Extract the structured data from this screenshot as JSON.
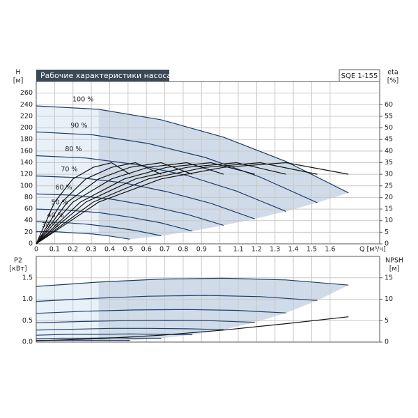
{
  "chart_data": [
    {
      "type": "line",
      "title": "Рабочие характеристики насоса",
      "subtitle": "SQE 1-155",
      "xlabel": "Q [м³/ч]",
      "ylabel": "H",
      "yunit": "[м]",
      "y2label": "eta",
      "y2unit": "[%]",
      "xlim": [
        0,
        1.87
      ],
      "xticks": [
        0,
        0.1,
        0.2,
        0.3,
        0.4,
        0.5,
        0.6,
        0.7,
        0.8,
        0.9,
        1,
        1.1,
        1.2,
        1.3,
        1.4,
        1.5,
        1.6
      ],
      "ylim": [
        0,
        280
      ],
      "yticks": [
        0,
        20,
        40,
        60,
        80,
        100,
        120,
        140,
        160,
        180,
        200,
        220,
        240,
        260
      ],
      "y2lim": [
        0,
        70
      ],
      "y2ticks": [
        0,
        5,
        10,
        15,
        20,
        25,
        30,
        35,
        40,
        45,
        50,
        55,
        60
      ],
      "grid": true,
      "series": [
        {
          "name": "100 %",
          "color": "#1f3d66",
          "x": [
            0,
            0.34,
            0.68,
            1.02,
            1.36,
            1.7
          ],
          "values": [
            238,
            232,
            214,
            184,
            142,
            88
          ]
        },
        {
          "name": "90 %",
          "color": "#1f3d66",
          "x": [
            0,
            0.31,
            0.61,
            0.92,
            1.22,
            1.53
          ],
          "values": [
            193,
            188,
            173,
            149,
            115,
            71
          ]
        },
        {
          "name": "80 %",
          "color": "#1f3d66",
          "x": [
            0,
            0.27,
            0.54,
            0.82,
            1.09,
            1.36
          ],
          "values": [
            152,
            148,
            137,
            118,
            91,
            56
          ]
        },
        {
          "name": "70 %",
          "color": "#1f3d66",
          "x": [
            0,
            0.24,
            0.48,
            0.71,
            0.95,
            1.19
          ],
          "values": [
            117,
            114,
            105,
            90,
            70,
            43
          ]
        },
        {
          "name": "60 %",
          "color": "#1f3d66",
          "x": [
            0,
            0.2,
            0.41,
            0.61,
            0.82,
            1.02
          ],
          "values": [
            86,
            84,
            77,
            66,
            51,
            32
          ]
        },
        {
          "name": "50 %",
          "color": "#1f3d66",
          "x": [
            0,
            0.17,
            0.34,
            0.51,
            0.68,
            0.85
          ],
          "values": [
            60,
            58,
            54,
            46,
            36,
            22
          ]
        },
        {
          "name": "40 %",
          "color": "#1f3d66",
          "x": [
            0,
            0.14,
            0.27,
            0.41,
            0.54,
            0.68
          ],
          "values": [
            38,
            37,
            34,
            29,
            23,
            14
          ]
        },
        {
          "name": "30 %",
          "color": "#1f3d66",
          "x": [
            0,
            0.1,
            0.2,
            0.31,
            0.41,
            0.51
          ],
          "values": [
            21,
            21,
            19,
            17,
            13,
            8
          ]
        },
        {
          "color": "#111111",
          "axis": "y2",
          "x": [
            0,
            0.34,
            0.68,
            1.02,
            1.36,
            1.7
          ],
          "values": [
            0,
            18,
            28,
            33,
            35,
            30
          ]
        },
        {
          "color": "#111111",
          "axis": "y2",
          "x": [
            0,
            0.31,
            0.61,
            0.92,
            1.22,
            1.53
          ],
          "values": [
            0,
            18,
            28,
            33,
            35,
            30
          ]
        },
        {
          "color": "#111111",
          "axis": "y2",
          "x": [
            0,
            0.27,
            0.54,
            0.82,
            1.09,
            1.36
          ],
          "values": [
            0,
            18,
            28,
            33,
            35,
            30
          ]
        },
        {
          "color": "#111111",
          "axis": "y2",
          "x": [
            0,
            0.24,
            0.48,
            0.71,
            0.95,
            1.19
          ],
          "values": [
            0,
            18,
            28,
            33,
            35,
            30
          ]
        },
        {
          "color": "#111111",
          "axis": "y2",
          "x": [
            0,
            0.2,
            0.41,
            0.61,
            0.82,
            1.02
          ],
          "values": [
            0,
            18,
            28,
            33,
            35,
            30
          ]
        },
        {
          "color": "#111111",
          "axis": "y2",
          "x": [
            0,
            0.17,
            0.34,
            0.51,
            0.68,
            0.85
          ],
          "values": [
            0,
            18,
            28,
            33,
            35,
            30
          ]
        },
        {
          "color": "#111111",
          "axis": "y2",
          "x": [
            0,
            0.14,
            0.27,
            0.41,
            0.54,
            0.68
          ],
          "values": [
            0,
            18,
            28,
            33,
            35,
            30
          ]
        },
        {
          "color": "#111111",
          "axis": "y2",
          "x": [
            0,
            0.1,
            0.2,
            0.31,
            0.41,
            0.51
          ],
          "values": [
            0,
            18,
            28,
            33,
            35,
            30
          ]
        }
      ]
    },
    {
      "type": "line",
      "ylabel": "P2",
      "yunit": "[кВт]",
      "y2label": "NPSH",
      "y2unit": "[м]",
      "ylim": [
        0,
        2.0
      ],
      "yticks": [
        {
          "value": 0,
          "label": "0.0"
        },
        0.5,
        {
          "value": 1,
          "label": "1.0"
        },
        1.5
      ],
      "y2lim": [
        0,
        20
      ],
      "y2ticks": [
        0,
        5,
        10,
        15
      ],
      "grid": true,
      "series": [
        {
          "color": "#1f3d66",
          "x": [
            0,
            0.34,
            0.68,
            1.02,
            1.36,
            1.7
          ],
          "values": [
            1.3,
            1.4,
            1.47,
            1.49,
            1.45,
            1.33
          ]
        },
        {
          "color": "#1f3d66",
          "x": [
            0,
            0.31,
            0.61,
            0.92,
            1.22,
            1.53
          ],
          "values": [
            0.95,
            1.02,
            1.07,
            1.09,
            1.06,
            0.97
          ]
        },
        {
          "color": "#1f3d66",
          "x": [
            0,
            0.27,
            0.54,
            0.82,
            1.09,
            1.36
          ],
          "values": [
            0.67,
            0.72,
            0.75,
            0.76,
            0.74,
            0.68
          ]
        },
        {
          "color": "#1f3d66",
          "x": [
            0,
            0.24,
            0.48,
            0.71,
            0.95,
            1.19
          ],
          "values": [
            0.45,
            0.48,
            0.5,
            0.51,
            0.5,
            0.46
          ]
        },
        {
          "color": "#1f3d66",
          "x": [
            0,
            0.2,
            0.41,
            0.61,
            0.82,
            1.02
          ],
          "values": [
            0.28,
            0.3,
            0.32,
            0.32,
            0.31,
            0.29
          ]
        },
        {
          "color": "#1f3d66",
          "x": [
            0,
            0.17,
            0.34,
            0.51,
            0.68,
            0.85
          ],
          "values": [
            0.16,
            0.18,
            0.18,
            0.19,
            0.18,
            0.17
          ]
        },
        {
          "color": "#1f3d66",
          "x": [
            0,
            0.14,
            0.27,
            0.41,
            0.54,
            0.68
          ],
          "values": [
            0.08,
            0.09,
            0.09,
            0.1,
            0.09,
            0.09
          ]
        },
        {
          "color": "#1f3d66",
          "x": [
            0,
            0.1,
            0.2,
            0.31,
            0.41,
            0.51
          ],
          "values": [
            0.04,
            0.04,
            0.04,
            0.04,
            0.04,
            0.04
          ]
        },
        {
          "color": "#111111",
          "axis": "y2",
          "x": [
            0,
            0.34,
            0.68,
            1.02,
            1.36,
            1.7
          ],
          "values": [
            0.3,
            0.8,
            1.6,
            2.8,
            4.3,
            5.9
          ]
        }
      ]
    }
  ]
}
